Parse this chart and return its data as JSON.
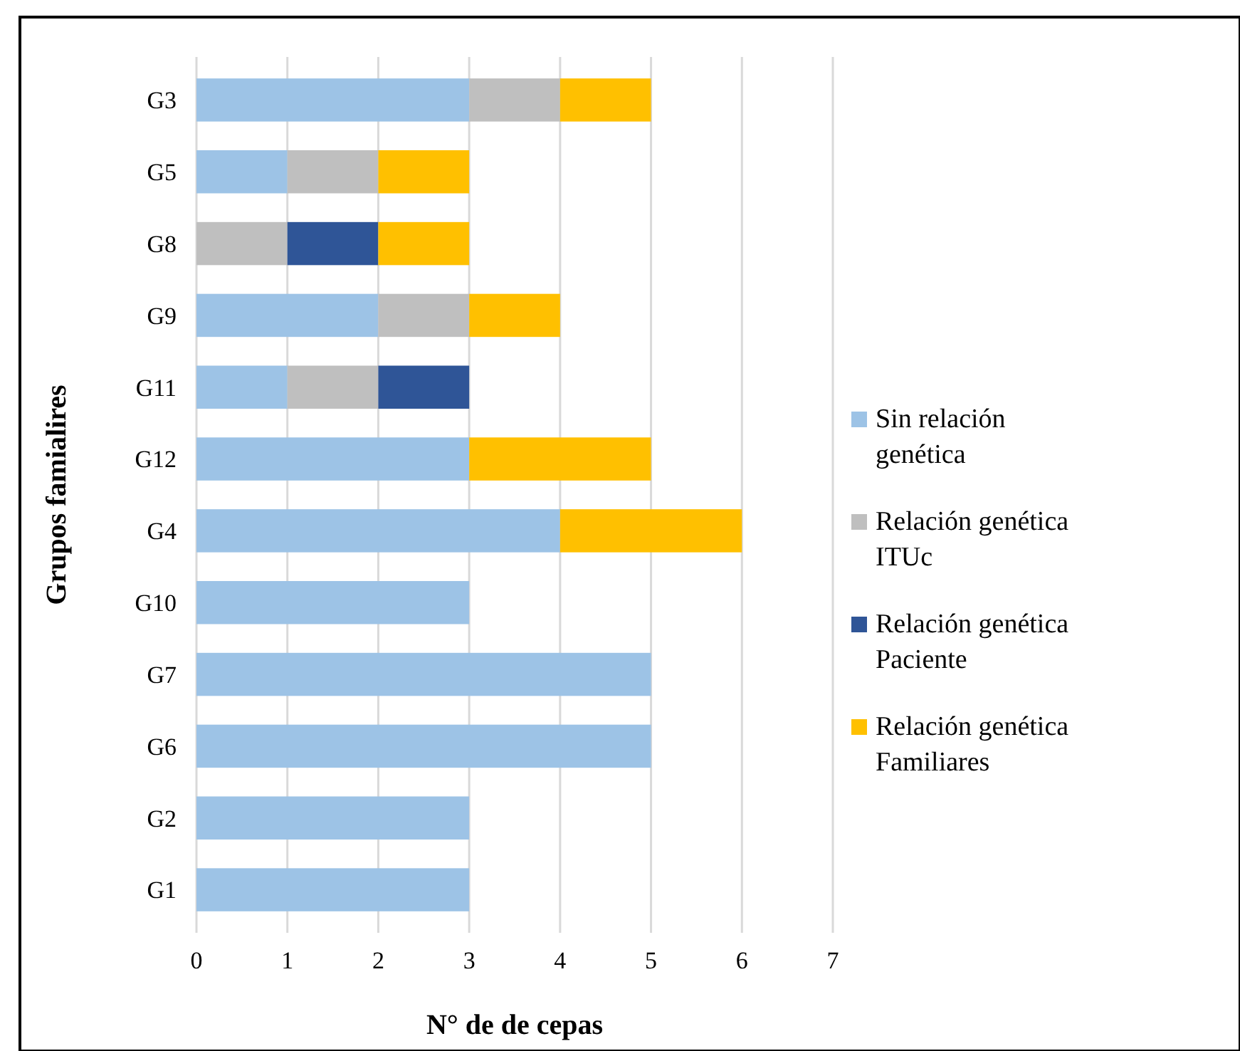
{
  "chart_data": {
    "type": "bar",
    "orientation": "horizontal",
    "stacked": true,
    "xlabel": "N° de  de cepas",
    "ylabel": "Grupos famialires",
    "categories": [
      "G3",
      "G5",
      "G8",
      "G9",
      "G11",
      "G12",
      "G4",
      "G10",
      "G7",
      "G6",
      "G2",
      "G1"
    ],
    "series": [
      {
        "name": "Sin relación genética",
        "color": "#9dc3e6",
        "values": [
          3,
          1,
          0,
          2,
          1,
          3,
          4,
          3,
          5,
          5,
          3,
          3
        ]
      },
      {
        "name": "Relación genética ITUc",
        "color": "#bfbfbf",
        "values": [
          1,
          1,
          1,
          1,
          1,
          0,
          0,
          0,
          0,
          0,
          0,
          0
        ]
      },
      {
        "name": "Relación genética Paciente",
        "color": "#2f5597",
        "values": [
          0,
          0,
          1,
          0,
          1,
          0,
          0,
          0,
          0,
          0,
          0,
          0
        ]
      },
      {
        "name": "Relación genética Familiares",
        "color": "#ffc000",
        "values": [
          1,
          1,
          1,
          1,
          0,
          2,
          2,
          0,
          0,
          0,
          0,
          0
        ]
      }
    ],
    "xlim": [
      0,
      7
    ],
    "xticks": [
      0,
      1,
      2,
      3,
      4,
      5,
      6,
      7
    ],
    "grid": "x",
    "legend": "right"
  }
}
